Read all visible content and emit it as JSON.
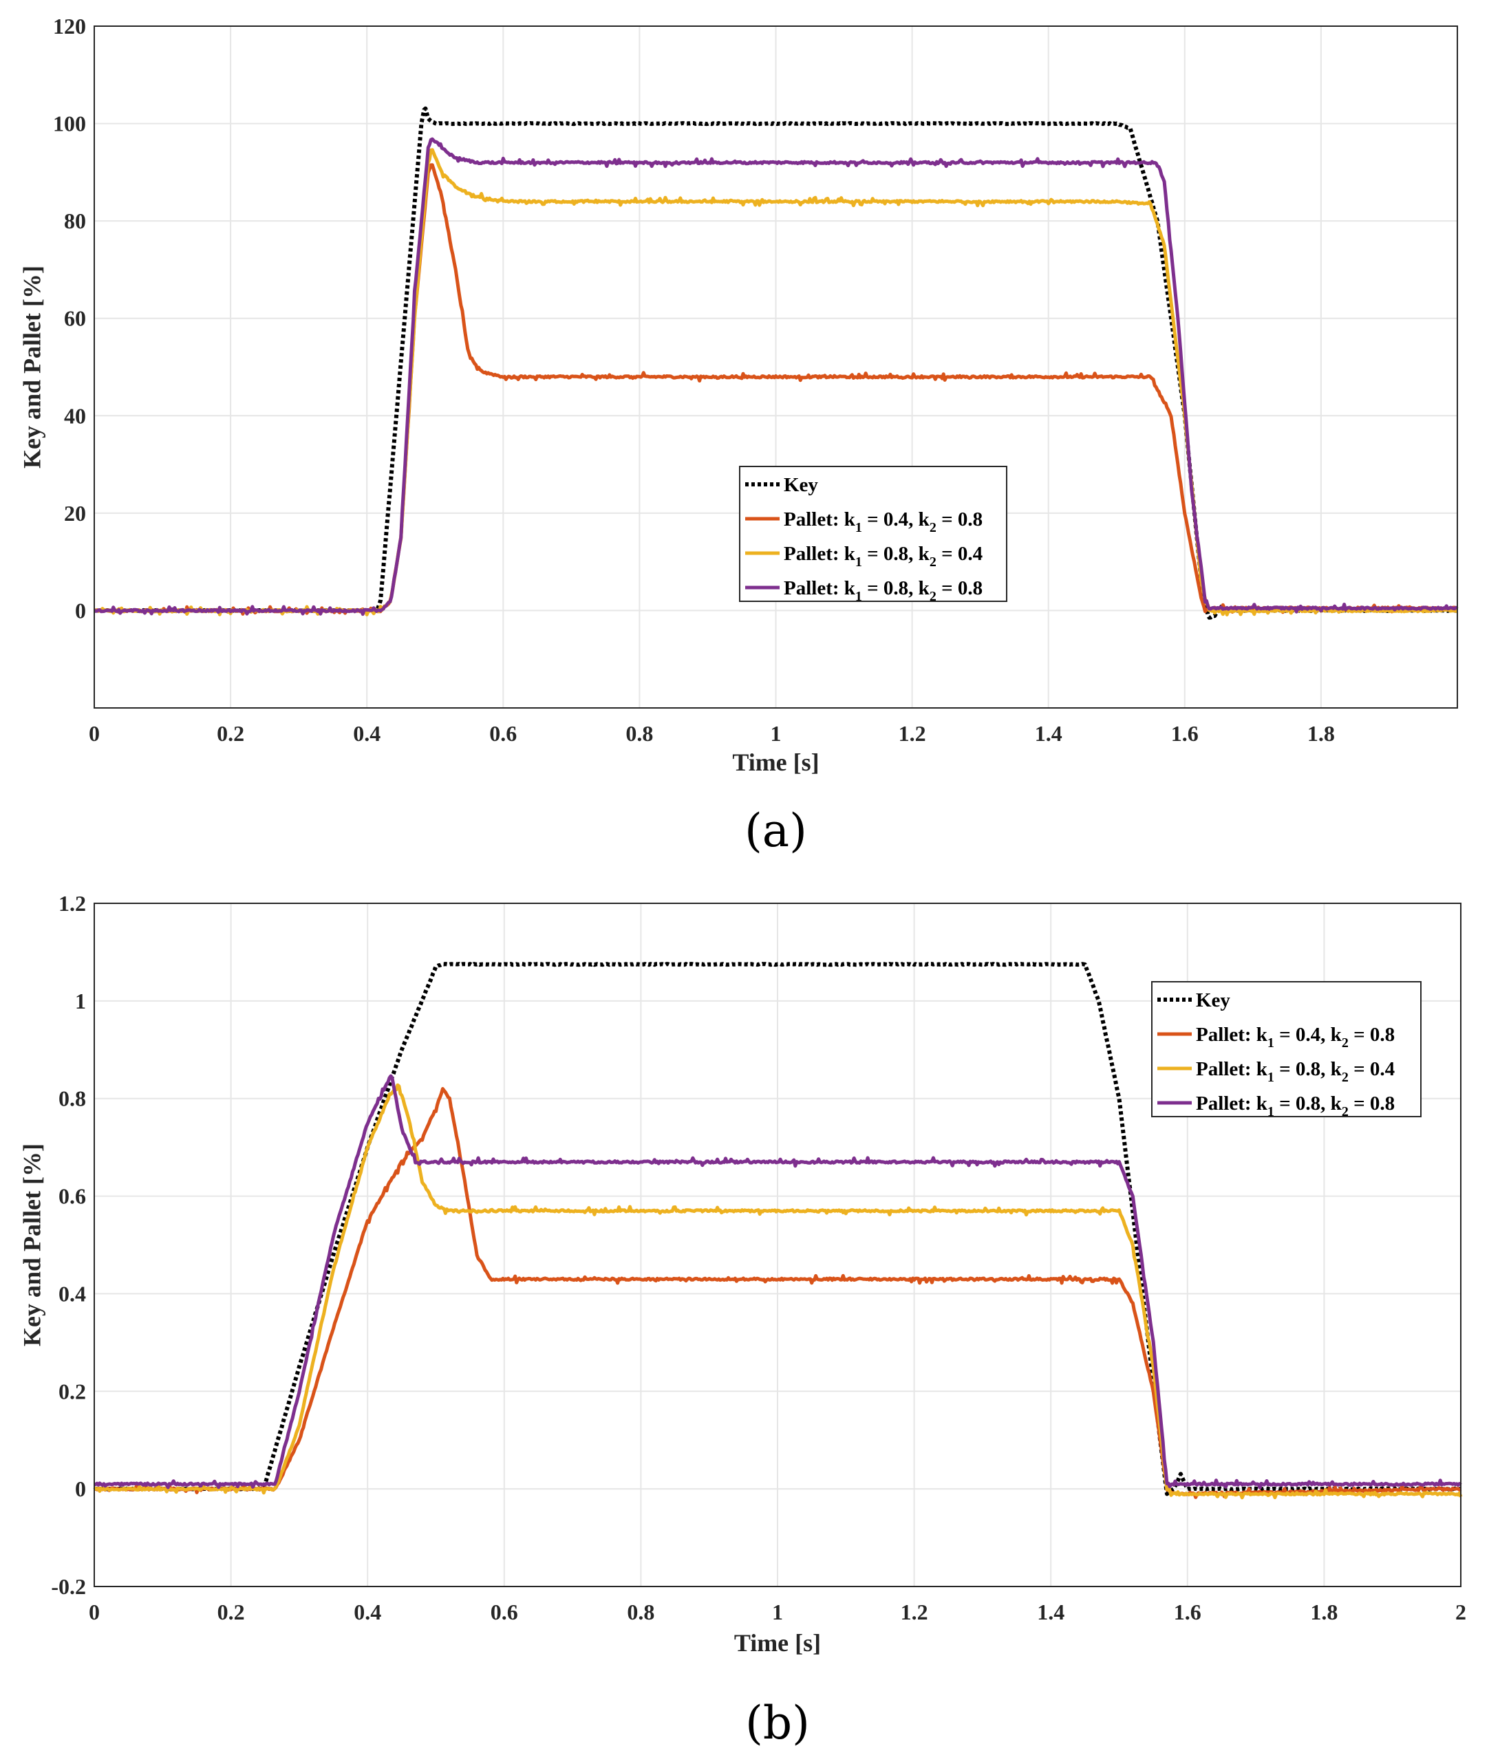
{
  "chart_data": [
    {
      "id": "a",
      "type": "line",
      "caption": "(a)",
      "xlabel": "Time [s]",
      "ylabel": "Key and Pallet [%]",
      "xlim": [
        0,
        2
      ],
      "ylim": [
        -20,
        120
      ],
      "xticks": [
        0,
        0.2,
        0.4,
        0.6,
        0.8,
        1,
        1.2,
        1.4,
        1.6,
        1.8
      ],
      "xtick_labels": [
        "0",
        "0.2",
        "0.4",
        "0.6",
        "0.8",
        "1",
        "1.2",
        "1.4",
        "1.6",
        "1.8"
      ],
      "yticks": [
        0,
        20,
        40,
        60,
        80,
        100,
        120
      ],
      "ytick_labels": [
        "0",
        "20",
        "40",
        "60",
        "80",
        "100",
        "120"
      ],
      "grid": true,
      "legend_position": "center-right",
      "series": [
        {
          "name": "Key",
          "legend_prefix": "Key",
          "color": "#000000",
          "style": "dotted",
          "x": [
            0,
            0.415,
            0.42,
            0.48,
            0.485,
            0.49,
            0.5,
            1.0,
            1.5,
            1.52,
            1.56,
            1.6,
            1.625,
            1.635,
            1.645,
            1.65,
            1.66,
            2.0
          ],
          "y": [
            0,
            0,
            2,
            100,
            103.5,
            101,
            100,
            100,
            100,
            99,
            80,
            40,
            5,
            -1.5,
            -1,
            1,
            0,
            0
          ]
        },
        {
          "name": "Pallet: k1 = 0.4, k2 = 0.8",
          "legend_prefix": "Pallet: k",
          "k1": "0.4",
          "k2": "0.8",
          "color": "#D95319",
          "style": "solid",
          "x": [
            0,
            0.42,
            0.435,
            0.45,
            0.47,
            0.49,
            0.495,
            0.51,
            0.53,
            0.55,
            0.57,
            0.6,
            1.0,
            1.5,
            1.55,
            1.58,
            1.6,
            1.625,
            1.63,
            1.64,
            2.0
          ],
          "y": [
            0,
            0,
            2,
            15,
            60,
            90,
            92,
            85,
            70,
            52,
            49,
            48,
            48,
            48,
            48,
            40,
            20,
            2,
            0,
            0.5,
            0.5
          ]
        },
        {
          "name": "Pallet: k1 = 0.8, k2 = 0.4",
          "legend_prefix": "Pallet: k",
          "k1": "0.8",
          "k2": "0.4",
          "color": "#EDB120",
          "style": "solid",
          "x": [
            0,
            0.42,
            0.435,
            0.45,
            0.47,
            0.49,
            0.495,
            0.51,
            0.53,
            0.56,
            0.6,
            1.0,
            1.5,
            1.55,
            1.57,
            1.6,
            1.625,
            1.635,
            2.0
          ],
          "y": [
            0,
            0,
            2,
            15,
            60,
            92,
            95,
            90,
            87,
            85,
            84,
            84,
            84,
            83.5,
            75,
            40,
            5,
            0,
            0
          ]
        },
        {
          "name": "Pallet: k1 = 0.8, k2 = 0.8",
          "legend_prefix": "Pallet: k",
          "k1": "0.8",
          "k2": "0.8",
          "color": "#7E2F8E",
          "style": "solid",
          "x": [
            0,
            0.42,
            0.435,
            0.45,
            0.47,
            0.49,
            0.495,
            0.51,
            0.53,
            0.56,
            0.6,
            1.0,
            1.5,
            1.56,
            1.57,
            1.59,
            1.61,
            1.63,
            1.635,
            2.0
          ],
          "y": [
            0,
            0,
            2,
            15,
            65,
            95,
            97,
            95,
            93,
            92,
            92,
            92,
            92,
            92,
            88,
            60,
            25,
            2,
            0.5,
            0.5
          ]
        }
      ]
    },
    {
      "id": "b",
      "type": "line",
      "caption": "(b)",
      "xlabel": "Time [s]",
      "ylabel": "Key and Pallet [%]",
      "xlim": [
        0,
        2
      ],
      "ylim": [
        -0.2,
        1.2
      ],
      "xticks": [
        0,
        0.2,
        0.4,
        0.6,
        0.8,
        1,
        1.2,
        1.4,
        1.6,
        1.8,
        2
      ],
      "xtick_labels": [
        "0",
        "0.2",
        "0.4",
        "0.6",
        "0.8",
        "1",
        "1.2",
        "1.4",
        "1.6",
        "1.8",
        "2"
      ],
      "yticks": [
        -0.2,
        0,
        0.2,
        0.4,
        0.6,
        0.8,
        1,
        1.2
      ],
      "ytick_labels": [
        "-0.2",
        "0",
        "0.2",
        "0.4",
        "0.6",
        "0.8",
        "1",
        "1.2"
      ],
      "grid": true,
      "legend_position": "top-right",
      "series": [
        {
          "name": "Key",
          "legend_prefix": "Key",
          "color": "#000000",
          "style": "dotted",
          "x": [
            0,
            0.24,
            0.25,
            0.3,
            0.35,
            0.4,
            0.45,
            0.5,
            0.51,
            1.0,
            1.45,
            1.47,
            1.5,
            1.53,
            1.56,
            1.57,
            1.58,
            1.59,
            1.6,
            2.0
          ],
          "y": [
            0,
            0,
            0.01,
            0.25,
            0.48,
            0.7,
            0.9,
            1.07,
            1.075,
            1.075,
            1.075,
            1.0,
            0.8,
            0.45,
            0.1,
            -0.01,
            0.0,
            0.03,
            0.0,
            0.0
          ]
        },
        {
          "name": "Pallet: k1 = 0.4, k2 = 0.8",
          "legend_prefix": "Pallet: k",
          "k1": "0.4",
          "k2": "0.8",
          "color": "#D95319",
          "style": "solid",
          "x": [
            0,
            0.265,
            0.3,
            0.35,
            0.4,
            0.45,
            0.48,
            0.5,
            0.51,
            0.52,
            0.54,
            0.56,
            0.58,
            0.6,
            1.0,
            1.5,
            1.52,
            1.55,
            1.57,
            1.58,
            2.0
          ],
          "y": [
            0,
            0,
            0.1,
            0.33,
            0.55,
            0.67,
            0.72,
            0.78,
            0.82,
            0.8,
            0.65,
            0.48,
            0.43,
            0.43,
            0.43,
            0.43,
            0.38,
            0.2,
            0.0,
            -0.01,
            0.0
          ]
        },
        {
          "name": "Pallet: k1 = 0.8, k2 = 0.4",
          "legend_prefix": "Pallet: k",
          "k1": "0.8",
          "k2": "0.4",
          "color": "#EDB120",
          "style": "solid",
          "x": [
            0,
            0.265,
            0.3,
            0.35,
            0.4,
            0.43,
            0.445,
            0.46,
            0.48,
            0.5,
            0.52,
            0.55,
            1.0,
            1.5,
            1.52,
            1.55,
            1.57,
            1.58,
            2.0
          ],
          "y": [
            0,
            0,
            0.13,
            0.45,
            0.7,
            0.8,
            0.83,
            0.76,
            0.63,
            0.58,
            0.57,
            0.57,
            0.57,
            0.57,
            0.5,
            0.25,
            0.0,
            -0.01,
            -0.01
          ]
        },
        {
          "name": "Pallet: k1 = 0.8, k2 = 0.8",
          "legend_prefix": "Pallet: k",
          "k1": "0.8",
          "k2": "0.8",
          "color": "#7E2F8E",
          "style": "solid",
          "x": [
            0,
            0.265,
            0.3,
            0.35,
            0.4,
            0.425,
            0.435,
            0.45,
            0.47,
            0.5,
            1.0,
            1.5,
            1.52,
            1.55,
            1.57,
            1.58,
            2.0
          ],
          "y": [
            0.01,
            0.01,
            0.2,
            0.52,
            0.75,
            0.82,
            0.85,
            0.74,
            0.67,
            0.67,
            0.67,
            0.67,
            0.6,
            0.3,
            0.01,
            0.01,
            0.01
          ]
        }
      ]
    }
  ]
}
